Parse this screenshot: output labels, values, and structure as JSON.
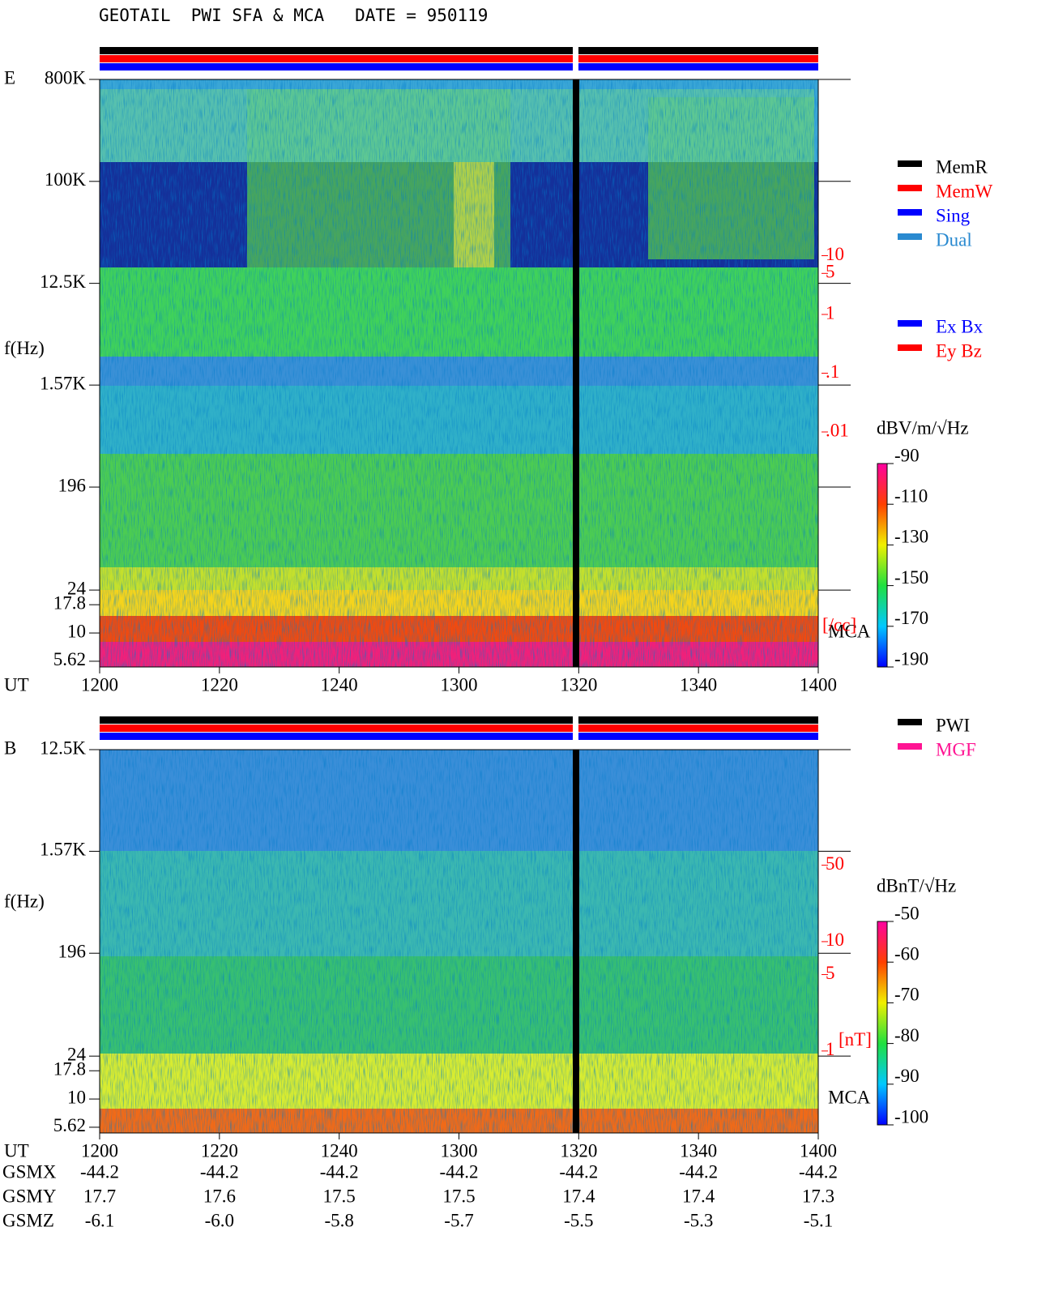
{
  "title": "GEOTAIL  PWI SFA & MCA   DATE = 950119",
  "legends": {
    "mode": [
      {
        "name": "MemR",
        "color": "#000000"
      },
      {
        "name": "MemW",
        "color": "#ff0000"
      },
      {
        "name": "Sing",
        "color": "#0000ff"
      },
      {
        "name": "Dual",
        "color": "#2a8ad0"
      }
    ],
    "components": [
      {
        "name": "Ex Bx",
        "color": "#0000ff"
      },
      {
        "name": "Ey Bz",
        "color": "#ff0000"
      }
    ],
    "sensor": [
      {
        "name": "PWI",
        "color": "#000000"
      },
      {
        "name": "MGF",
        "color": "#ff1493"
      }
    ]
  },
  "chart_data": [
    {
      "type": "heatmap",
      "panel_label": "E",
      "ylabel": "f(Hz)",
      "xlabel": "UT",
      "categories": [
        "1200",
        "1220",
        "1240",
        "1300",
        "1320",
        "1340",
        "1400"
      ],
      "log_y": true,
      "ylim": [
        5,
        800000
      ],
      "yticks": [
        {
          "value": 800000,
          "label": "800K"
        },
        {
          "value": 100000,
          "label": "100K"
        },
        {
          "value": 12500,
          "label": "12.5K"
        },
        {
          "value": 1570,
          "label": "1.57K"
        },
        196,
        24,
        17.8,
        10,
        5.62
      ],
      "band_label": "MCA",
      "y2label": "[/cc]",
      "y2lim": [
        1e-06,
        10000
      ],
      "y2ticks": [
        10,
        5,
        1,
        {
          "value": 0.1,
          "label": ".1"
        },
        {
          "value": 0.01,
          "label": ".01"
        }
      ],
      "colorbar": {
        "label": "dBV/m/√Hz",
        "lim": [
          -190,
          -90
        ],
        "ticks": [
          -90,
          -110,
          -130,
          -150,
          -170,
          -190
        ]
      }
    },
    {
      "type": "heatmap",
      "panel_label": "B",
      "ylabel": "f(Hz)",
      "xlabel": "UT",
      "categories": [
        "1200",
        "1220",
        "1240",
        "1300",
        "1320",
        "1340",
        "1400"
      ],
      "log_y": true,
      "ylim": [
        5,
        12500
      ],
      "yticks": [
        {
          "value": 12500,
          "label": "12.5K"
        },
        {
          "value": 1570,
          "label": "1.57K"
        },
        196,
        24,
        17.8,
        10,
        5.62
      ],
      "band_label": "MCA",
      "y2label": "[nT]",
      "y2lim": [
        0.178,
        570
      ],
      "y2ticks": [
        50,
        10,
        5,
        1
      ],
      "colorbar": {
        "label": "dBnT/√Hz",
        "lim": [
          -100,
          -50
        ],
        "ticks": [
          -50,
          -60,
          -70,
          -80,
          -90,
          -100
        ]
      }
    }
  ],
  "orbit": {
    "rows": [
      {
        "label": "GSMX",
        "values": [
          "-44.2",
          "-44.2",
          "-44.2",
          "-44.2",
          "-44.2",
          "-44.2",
          "-44.2"
        ]
      },
      {
        "label": "GSMY",
        "values": [
          "17.7",
          "17.6",
          "17.5",
          "17.5",
          "17.4",
          "17.4",
          "17.3"
        ]
      },
      {
        "label": "GSMZ",
        "values": [
          "-6.1",
          "-6.0",
          "-5.8",
          "-5.7",
          "-5.5",
          "-5.3",
          "-5.1"
        ]
      }
    ]
  }
}
